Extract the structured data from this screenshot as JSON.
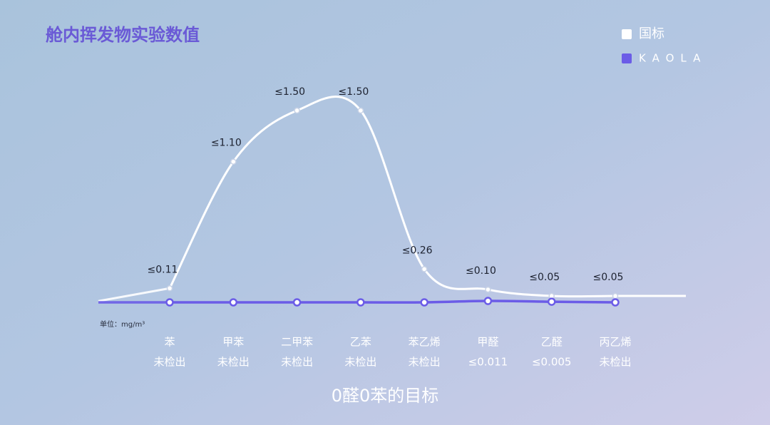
{
  "chart_data": {
    "type": "line",
    "title": "舱内挥发物实验数值",
    "unit_label": "单位：mg/m³",
    "caption": "0醛0苯的目标",
    "legend_position": "top-right",
    "categories": [
      "苯",
      "甲苯",
      "二甲苯",
      "乙苯",
      "苯乙烯",
      "甲醛",
      "乙醛",
      "丙乙烯"
    ],
    "series": [
      {
        "name": "国标",
        "color": "#ffffff",
        "values": [
          0.11,
          1.1,
          1.5,
          1.5,
          0.26,
          0.1,
          0.05,
          0.05
        ],
        "value_labels": [
          "≤0.11",
          "≤1.10",
          "≤1.50",
          "≤1.50",
          "≤0.26",
          "≤0.10",
          "≤0.05",
          "≤0.05"
        ]
      },
      {
        "name": "KAOLA",
        "color": "#6b5ce7",
        "values": [
          0,
          0,
          0,
          0,
          0,
          0.011,
          0.005,
          0
        ],
        "value_labels": [
          "未检出",
          "未检出",
          "未检出",
          "未检出",
          "未检出",
          "≤0.011",
          "≤0.005",
          "未检出"
        ]
      }
    ]
  }
}
